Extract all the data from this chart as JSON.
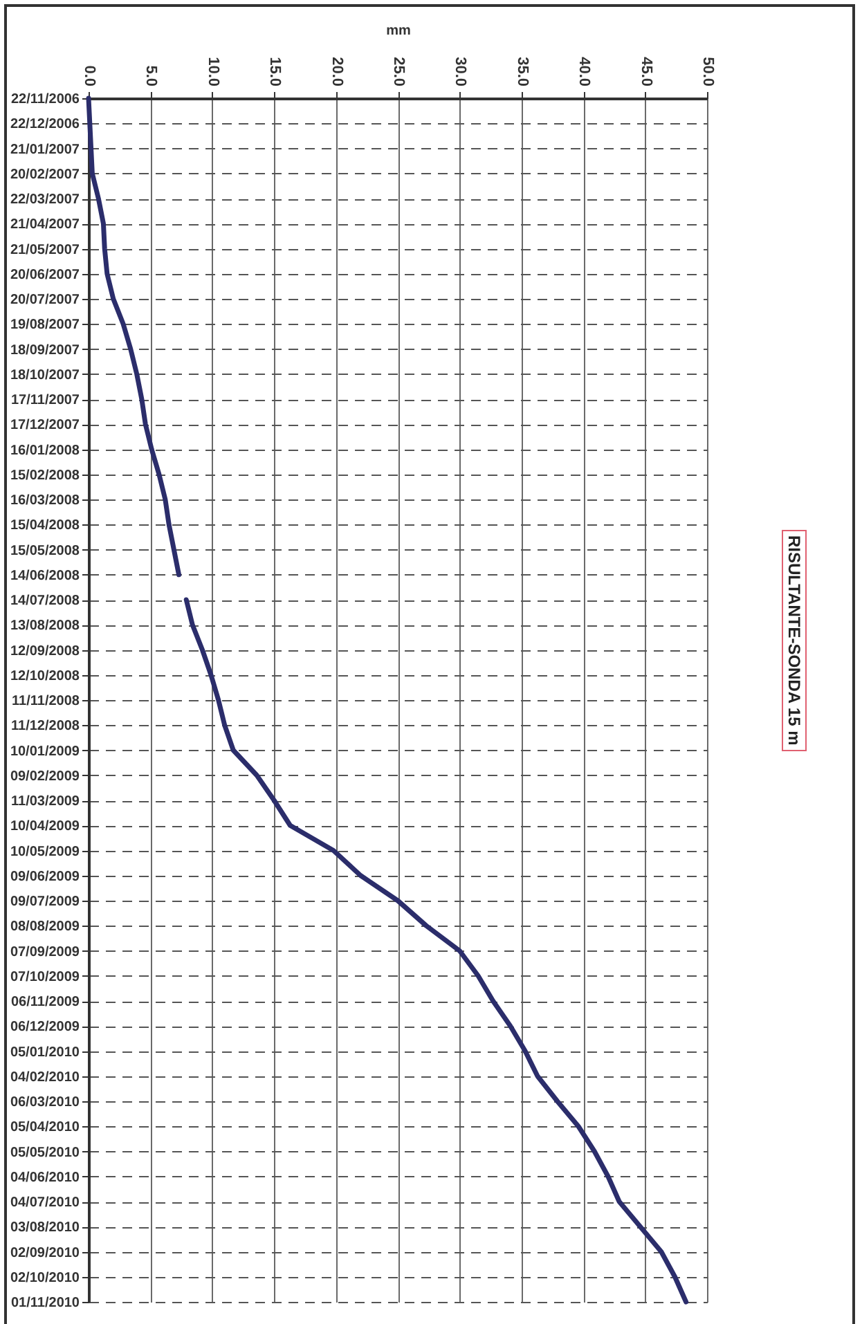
{
  "chart_data": {
    "type": "line",
    "title": "RISULTANTE-SONDA 15 m",
    "xlabel": "mm",
    "orientation": "horizontal",
    "grid": true,
    "line_style": "solid",
    "categories": [
      "22/11/2006",
      "22/12/2006",
      "21/01/2007",
      "20/02/2007",
      "22/03/2007",
      "21/04/2007",
      "21/05/2007",
      "20/06/2007",
      "20/07/2007",
      "19/08/2007",
      "18/09/2007",
      "18/10/2007",
      "17/11/2007",
      "17/12/2007",
      "16/01/2008",
      "15/02/2008",
      "16/03/2008",
      "15/04/2008",
      "15/05/2008",
      "14/06/2008",
      "14/07/2008",
      "13/08/2008",
      "12/09/2008",
      "12/10/2008",
      "11/11/2008",
      "11/12/2008",
      "10/01/2009",
      "09/02/2009",
      "11/03/2009",
      "10/04/2009",
      "10/05/2009",
      "09/06/2009",
      "09/07/2009",
      "08/08/2009",
      "07/09/2009",
      "07/10/2009",
      "06/11/2009",
      "06/12/2009",
      "05/01/2010",
      "04/02/2010",
      "06/03/2010",
      "05/04/2010",
      "05/05/2010",
      "04/06/2010",
      "04/07/2010",
      "03/08/2010",
      "02/09/2010",
      "02/10/2010",
      "01/11/2010"
    ],
    "series": [
      {
        "color": "#2b2d6b",
        "values": [
          0.0,
          0.1,
          0.2,
          0.3,
          0.8,
          1.2,
          1.3,
          1.5,
          2.0,
          2.8,
          3.4,
          3.9,
          4.3,
          4.6,
          5.1,
          5.7,
          6.2,
          6.5,
          6.9,
          7.3,
          null,
          null,
          null,
          null,
          null,
          null,
          null,
          null,
          null,
          null,
          null,
          null,
          null,
          null,
          null,
          null,
          null,
          null,
          null,
          null,
          null,
          null,
          null,
          null,
          null,
          null,
          null,
          null,
          null
        ]
      },
      {
        "color": "#2b2d6b",
        "values": [
          null,
          null,
          null,
          null,
          null,
          null,
          null,
          null,
          null,
          null,
          null,
          null,
          null,
          null,
          null,
          null,
          null,
          null,
          null,
          null,
          7.9,
          8.4,
          9.2,
          9.9,
          10.5,
          11.0,
          11.7,
          13.6,
          15.0,
          16.3,
          19.8,
          22.0,
          25.0,
          27.3,
          30.0,
          31.5,
          32.7,
          34.1,
          35.3,
          36.3,
          37.9,
          39.6,
          40.9,
          42.0,
          42.9,
          44.6,
          46.3,
          47.4,
          48.3
        ]
      }
    ],
    "xlim": [
      0,
      50
    ],
    "xticks": [
      {
        "value": 0,
        "label": "0.0"
      },
      {
        "value": 5,
        "label": "5.0"
      },
      {
        "value": 10,
        "label": "10.0"
      },
      {
        "value": 15,
        "label": "15.0"
      },
      {
        "value": 20,
        "label": "20.0"
      },
      {
        "value": 25,
        "label": "25.0"
      },
      {
        "value": 30,
        "label": "30.0"
      },
      {
        "value": 35,
        "label": "35.0"
      },
      {
        "value": 40,
        "label": "40.0"
      },
      {
        "value": 45,
        "label": "45.0"
      },
      {
        "value": 50,
        "label": "50.0"
      }
    ]
  }
}
